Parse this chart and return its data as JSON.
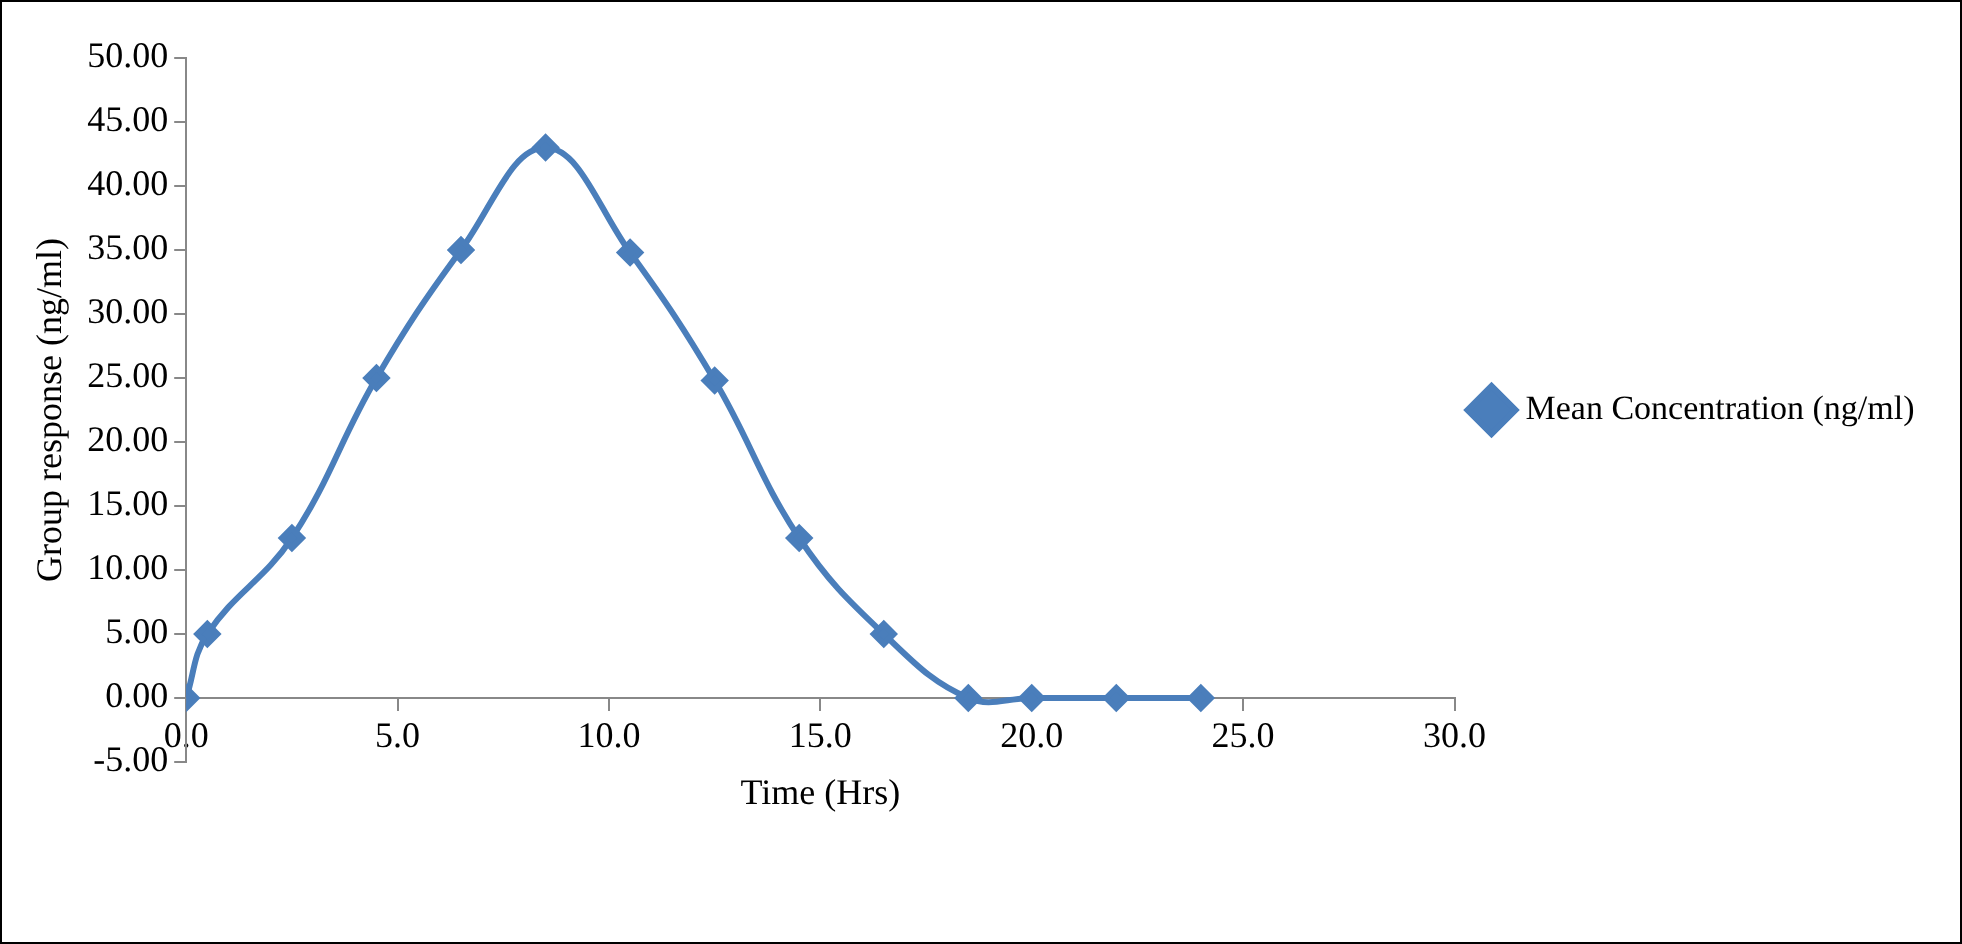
{
  "chart_data": {
    "type": "line",
    "xlabel": "Time (Hrs)",
    "ylabel": "Group response (ng/ml)",
    "x": [
      0,
      0.5,
      2.5,
      4.5,
      6.5,
      8.5,
      10.5,
      12.5,
      14.5,
      16.5,
      18.5,
      20,
      22,
      24
    ],
    "series": [
      {
        "name": "Mean Concentration (ng/ml)",
        "color": "#4a7ebb",
        "values": [
          0,
          5,
          12.5,
          25,
          35,
          43,
          34.8,
          24.8,
          12.5,
          5,
          0,
          0,
          0,
          0
        ]
      }
    ],
    "xlim": [
      0,
      30
    ],
    "xticks": [
      {
        "value": 0,
        "label": "0.0"
      },
      {
        "value": 5,
        "label": "5.0"
      },
      {
        "value": 10,
        "label": "10.0"
      },
      {
        "value": 15,
        "label": "15.0"
      },
      {
        "value": 20,
        "label": "20.0"
      },
      {
        "value": 25,
        "label": "25.0"
      },
      {
        "value": 30,
        "label": "30.0"
      }
    ],
    "ylim": [
      -5,
      50
    ],
    "yticks": [
      {
        "value": -5,
        "label": "-5.00"
      },
      {
        "value": 0,
        "label": "0.00"
      },
      {
        "value": 5,
        "label": "5.00"
      },
      {
        "value": 10,
        "label": "10.00"
      },
      {
        "value": 15,
        "label": "15.00"
      },
      {
        "value": 20,
        "label": "20.00"
      },
      {
        "value": 25,
        "label": "25.00"
      },
      {
        "value": 30,
        "label": "30.00"
      },
      {
        "value": 35,
        "label": "35.00"
      },
      {
        "value": 40,
        "label": "40.00"
      },
      {
        "value": 45,
        "label": "45.00"
      },
      {
        "value": 50,
        "label": "50.00"
      }
    ],
    "grid": false,
    "legend": "right",
    "marker": "diamond",
    "line_style": "solid"
  }
}
